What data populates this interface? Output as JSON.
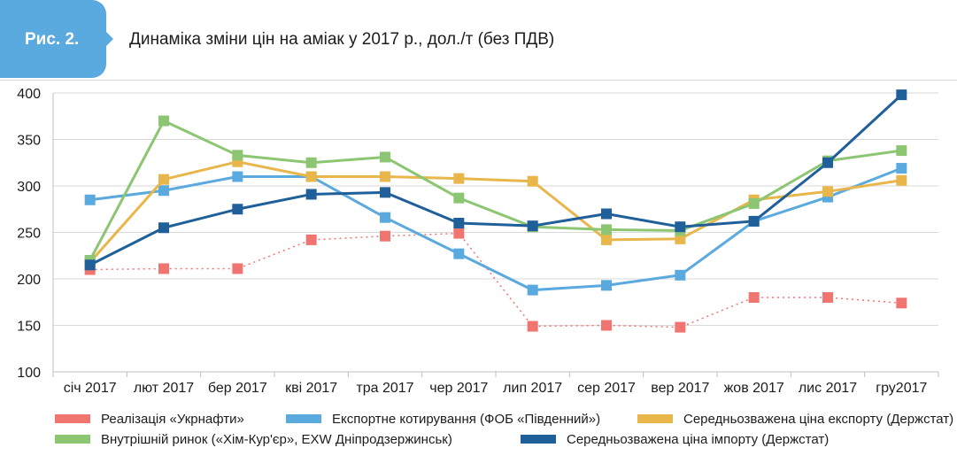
{
  "header": {
    "figure_label": "Рис. 2.",
    "title": "Динаміка зміни цін на аміак у 2017 р., дол./т (без ПДВ)"
  },
  "chart_data": {
    "type": "line",
    "categories": [
      "січ 2017",
      "лют 2017",
      "бер 2017",
      "кві 2017",
      "тра 2017",
      "чер 2017",
      "лип 2017",
      "сер 2017",
      "вер 2017",
      "жов 2017",
      "лис 2017",
      "гру2017"
    ],
    "ylim": [
      100,
      400
    ],
    "yticks": [
      100,
      150,
      200,
      250,
      300,
      350,
      400
    ],
    "grid": true,
    "legend_position": "bottom",
    "series": [
      {
        "name": "Реалізація «Укрнафти»",
        "color": "#f07470",
        "dash": true,
        "values": [
          210,
          211,
          211,
          242,
          246,
          249,
          149,
          150,
          148,
          180,
          180,
          174
        ]
      },
      {
        "name": "Експортне котирування (ФОБ «Південний»)",
        "color": "#5aa9df",
        "dash": false,
        "values": [
          285,
          295,
          310,
          310,
          266,
          227,
          188,
          193,
          204,
          262,
          288,
          319
        ]
      },
      {
        "name": "Середньозважена ціна експорту (Держстат)",
        "color": "#e8b64a",
        "dash": false,
        "values": [
          218,
          307,
          326,
          310,
          310,
          308,
          305,
          242,
          243,
          285,
          294,
          306
        ]
      },
      {
        "name": "Внутрішній ринок («Хім-Кур'єр», EXW Дніпродзержинськ)",
        "color": "#8cc672",
        "dash": false,
        "values": [
          220,
          370,
          333,
          325,
          331,
          287,
          256,
          253,
          252,
          281,
          327,
          338
        ]
      },
      {
        "name": "Середньозважена ціна імпорту (Держстат)",
        "color": "#1f5f9a",
        "dash": false,
        "values": [
          215,
          255,
          275,
          291,
          293,
          260,
          257,
          270,
          256,
          262,
          325,
          398
        ]
      }
    ]
  }
}
